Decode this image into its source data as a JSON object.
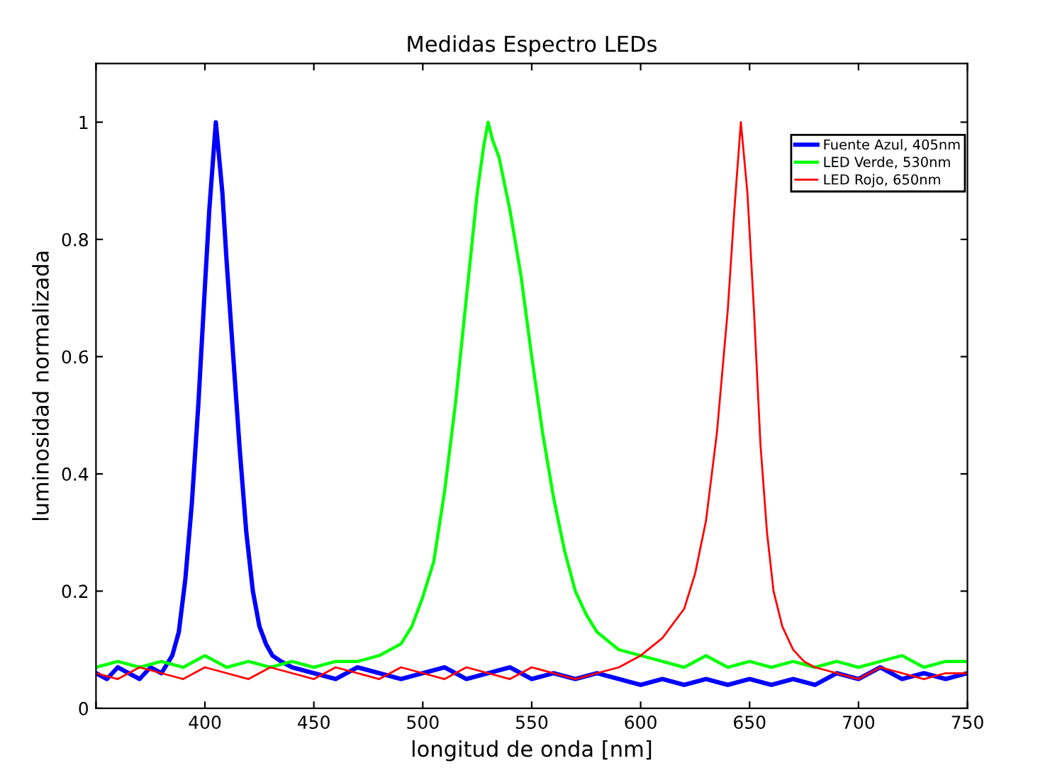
{
  "chart_data": {
    "type": "line",
    "title": "Medidas Espectro LEDs",
    "xlabel": "longitud de onda [nm]",
    "ylabel": "luminosidad normalizada",
    "xlim": [
      350,
      750
    ],
    "xticks": [
      {
        "value": 350,
        "label": null
      },
      400,
      450,
      500,
      550,
      600,
      650,
      700,
      750
    ],
    "ylim": [
      0,
      1.1
    ],
    "yticks": [
      0,
      0.2,
      0.4,
      0.6,
      0.8,
      1
    ],
    "grid": false,
    "legend": "top right",
    "marker": "none",
    "line_style": "solid",
    "series": [
      {
        "name": "Fuente Azul, 405nm",
        "color": "#0000ff",
        "x": [
          350,
          355,
          360,
          365,
          370,
          375,
          380,
          385,
          388,
          391,
          394,
          397,
          400,
          402,
          404,
          405,
          406,
          408,
          410,
          413,
          416,
          419,
          422,
          425,
          428,
          431,
          435,
          440,
          450,
          460,
          470,
          480,
          490,
          500,
          510,
          520,
          530,
          540,
          550,
          560,
          570,
          580,
          590,
          600,
          610,
          620,
          630,
          640,
          650,
          660,
          670,
          680,
          690,
          700,
          710,
          720,
          730,
          740,
          750
        ],
        "values": [
          0.06,
          0.05,
          0.07,
          0.06,
          0.05,
          0.07,
          0.06,
          0.09,
          0.13,
          0.22,
          0.35,
          0.52,
          0.72,
          0.85,
          0.95,
          1.0,
          0.96,
          0.88,
          0.76,
          0.6,
          0.44,
          0.3,
          0.2,
          0.14,
          0.11,
          0.09,
          0.08,
          0.07,
          0.06,
          0.05,
          0.07,
          0.06,
          0.05,
          0.06,
          0.07,
          0.05,
          0.06,
          0.07,
          0.05,
          0.06,
          0.05,
          0.06,
          0.05,
          0.04,
          0.05,
          0.04,
          0.05,
          0.04,
          0.05,
          0.04,
          0.05,
          0.04,
          0.06,
          0.05,
          0.07,
          0.05,
          0.06,
          0.05,
          0.06
        ]
      },
      {
        "name": "LED Verde, 530nm",
        "color": "#00ff00",
        "x": [
          350,
          360,
          370,
          380,
          390,
          400,
          410,
          420,
          430,
          440,
          450,
          460,
          470,
          480,
          490,
          495,
          500,
          505,
          510,
          515,
          520,
          525,
          528,
          530,
          532,
          535,
          540,
          545,
          550,
          555,
          560,
          565,
          570,
          575,
          580,
          590,
          600,
          610,
          620,
          630,
          640,
          650,
          660,
          670,
          680,
          690,
          700,
          710,
          720,
          730,
          740,
          750
        ],
        "values": [
          0.07,
          0.08,
          0.07,
          0.08,
          0.07,
          0.09,
          0.07,
          0.08,
          0.07,
          0.08,
          0.07,
          0.08,
          0.08,
          0.09,
          0.11,
          0.14,
          0.19,
          0.25,
          0.37,
          0.52,
          0.7,
          0.88,
          0.96,
          1.0,
          0.97,
          0.94,
          0.85,
          0.74,
          0.6,
          0.47,
          0.36,
          0.27,
          0.2,
          0.16,
          0.13,
          0.1,
          0.09,
          0.08,
          0.07,
          0.09,
          0.07,
          0.08,
          0.07,
          0.08,
          0.07,
          0.08,
          0.07,
          0.08,
          0.09,
          0.07,
          0.08,
          0.08
        ]
      },
      {
        "name": "LED Rojo, 650nm",
        "color": "#ff0000",
        "x": [
          350,
          360,
          370,
          380,
          390,
          400,
          410,
          420,
          430,
          440,
          450,
          460,
          470,
          480,
          490,
          500,
          510,
          520,
          530,
          540,
          550,
          560,
          570,
          580,
          590,
          600,
          610,
          620,
          625,
          630,
          635,
          640,
          643,
          646,
          649,
          652,
          655,
          658,
          661,
          665,
          670,
          675,
          680,
          690,
          700,
          710,
          720,
          730,
          740,
          750
        ],
        "values": [
          0.06,
          0.05,
          0.07,
          0.06,
          0.05,
          0.07,
          0.06,
          0.05,
          0.07,
          0.06,
          0.05,
          0.07,
          0.06,
          0.05,
          0.07,
          0.06,
          0.05,
          0.07,
          0.06,
          0.05,
          0.07,
          0.06,
          0.05,
          0.06,
          0.07,
          0.09,
          0.12,
          0.17,
          0.23,
          0.32,
          0.47,
          0.68,
          0.85,
          1.0,
          0.88,
          0.68,
          0.45,
          0.3,
          0.2,
          0.14,
          0.1,
          0.08,
          0.07,
          0.06,
          0.05,
          0.07,
          0.06,
          0.05,
          0.06,
          0.06
        ]
      }
    ]
  }
}
